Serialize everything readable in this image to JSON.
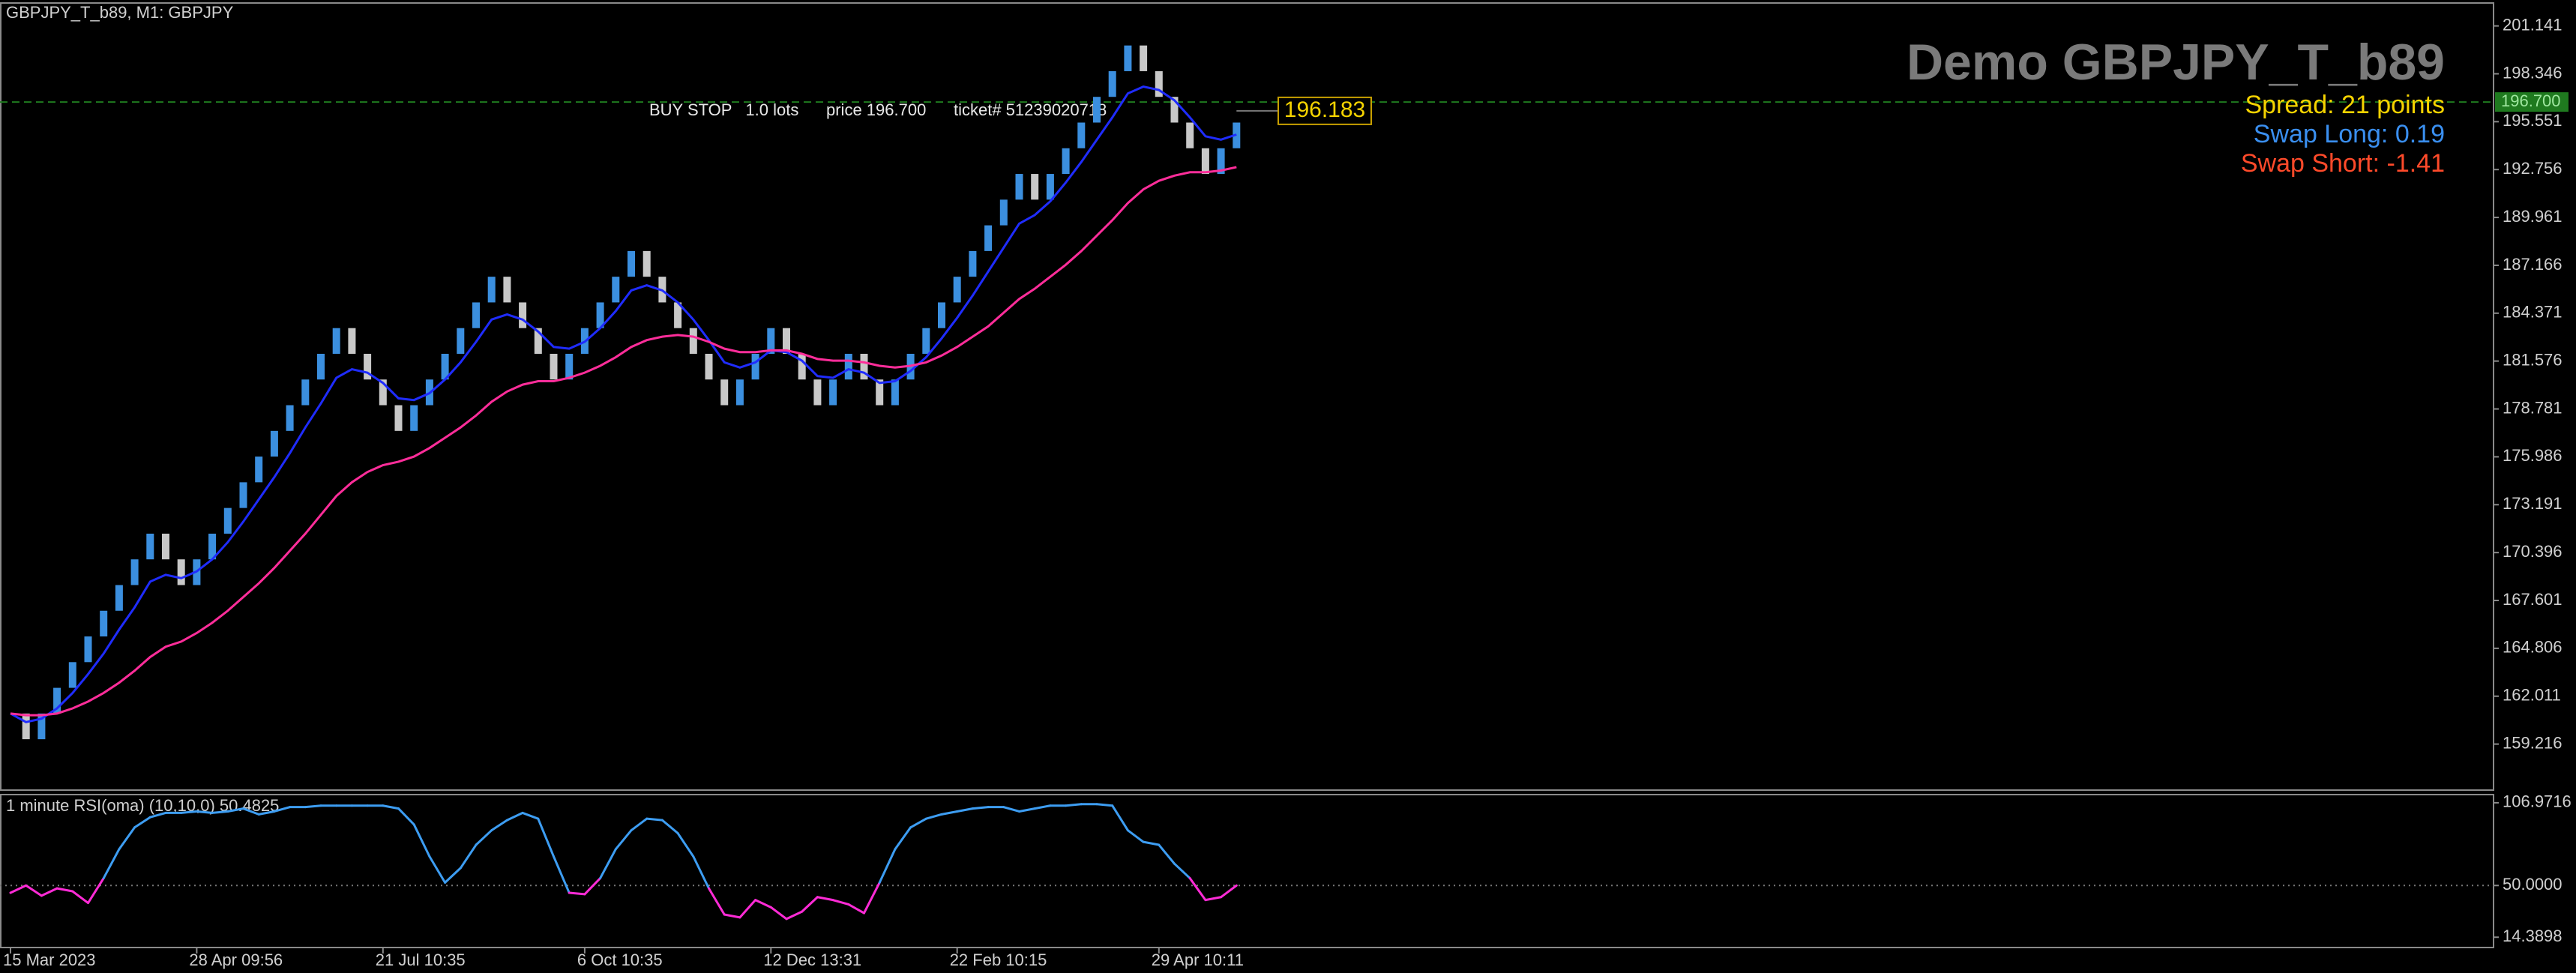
{
  "chart_data": [
    {
      "type": "renko",
      "title": "GBPJPY_T_b89, M1:  GBPJPY",
      "watermark": "Demo GBPJPY_T_b89",
      "info": [
        {
          "text": "Spread: 21 points",
          "color": "#f5d300"
        },
        {
          "text": "Swap Long: 0.19",
          "color": "#3a8ff0"
        },
        {
          "text": "Swap Short: -1.41",
          "color": "#ff4a2a"
        }
      ],
      "order": {
        "text": "BUY STOP   1.0 lots      price 196.700      ticket# 51239020718",
        "price": {
          "value": 196.7,
          "label": "196.700"
        },
        "color": "#1f7a1f"
      },
      "last_price": {
        "value": 196.183,
        "label": "196.183"
      },
      "categories": [
        "15 Mar 2023",
        null,
        null,
        null,
        null,
        null,
        null,
        null,
        null,
        null,
        null,
        null,
        "28 Apr 09:56",
        null,
        null,
        null,
        null,
        null,
        null,
        null,
        null,
        null,
        null,
        null,
        "21 Jul 10:35",
        null,
        null,
        null,
        null,
        null,
        null,
        null,
        null,
        null,
        null,
        null,
        null,
        "6 Oct 10:35",
        null,
        null,
        null,
        null,
        null,
        null,
        null,
        null,
        null,
        null,
        null,
        "12 Dec 13:31",
        null,
        null,
        null,
        null,
        null,
        null,
        null,
        null,
        null,
        null,
        null,
        "22 Feb 10:15",
        null,
        null,
        null,
        null,
        null,
        null,
        null,
        null,
        null,
        null,
        null,
        null,
        "29 Apr 10:11",
        null,
        null,
        null,
        null,
        null
      ],
      "values": [
        161.0,
        159.5,
        161,
        162.5,
        164,
        165.5,
        167,
        168.5,
        170,
        171.5,
        170,
        168.5,
        170,
        171.5,
        173,
        174.5,
        176,
        177.5,
        179,
        180.5,
        182,
        183.5,
        182,
        180.5,
        179,
        177.5,
        179,
        180.5,
        182,
        183.5,
        185,
        186.5,
        185,
        183.5,
        182,
        180.5,
        182,
        183.5,
        185,
        186.5,
        188,
        186.5,
        185,
        183.5,
        182,
        180.5,
        179,
        180.5,
        182,
        183.5,
        182,
        180.5,
        179,
        180.5,
        182,
        180.5,
        179,
        180.5,
        182,
        183.5,
        185,
        186.5,
        188,
        189.5,
        191,
        192.5,
        191,
        192.5,
        194,
        195.5,
        197,
        198.5,
        200,
        198.5,
        197,
        195.5,
        194,
        192.5,
        194,
        195.5
      ],
      "up_color": "#3b8fdf",
      "down_color": "#c8c8c8",
      "ma_lines": [
        {
          "color": "#1f2cff",
          "values": [
            161,
            160.5,
            160.7,
            161.3,
            162.2,
            163.3,
            164.5,
            165.9,
            167.2,
            168.7,
            169.1,
            168.9,
            169.3,
            170,
            171,
            172.2,
            173.5,
            174.8,
            176.2,
            177.7,
            179.1,
            180.6,
            181.1,
            180.9,
            180.3,
            179.4,
            179.3,
            179.7,
            180.5,
            181.5,
            182.7,
            184,
            184.3,
            184,
            183.3,
            182.4,
            182.3,
            182.7,
            183.5,
            184.5,
            185.7,
            186,
            185.7,
            185,
            184,
            182.8,
            181.5,
            181.2,
            181.5,
            182.2,
            182.1,
            181.6,
            180.7,
            180.6,
            181.1,
            180.9,
            180.3,
            180.4,
            181,
            181.8,
            182.9,
            184.1,
            185.4,
            186.8,
            188.2,
            189.6,
            190.1,
            190.9,
            192,
            193.2,
            194.5,
            195.8,
            197.2,
            197.6,
            197.4,
            196.8,
            195.8,
            194.7,
            194.5,
            194.8
          ]
        },
        {
          "color": "#ff2d9a",
          "values": [
            161,
            160.9,
            160.9,
            161,
            161.3,
            161.7,
            162.2,
            162.8,
            163.5,
            164.3,
            164.9,
            165.2,
            165.7,
            166.3,
            167,
            167.8,
            168.6,
            169.5,
            170.5,
            171.5,
            172.6,
            173.7,
            174.5,
            175.1,
            175.5,
            175.7,
            176,
            176.5,
            177.1,
            177.7,
            178.4,
            179.2,
            179.8,
            180.2,
            180.4,
            180.4,
            180.6,
            180.9,
            181.3,
            181.8,
            182.4,
            182.8,
            183,
            183.1,
            183,
            182.7,
            182.3,
            182.1,
            182.1,
            182.2,
            182.2,
            182,
            181.7,
            181.6,
            181.6,
            181.5,
            181.3,
            181.2,
            181.3,
            181.5,
            181.9,
            182.4,
            183,
            183.6,
            184.4,
            185.2,
            185.8,
            186.5,
            187.2,
            188,
            188.9,
            189.8,
            190.8,
            191.6,
            192.1,
            192.4,
            192.6,
            192.6,
            192.7,
            192.9
          ]
        }
      ],
      "ylim": [
        156.53,
        202.48
      ],
      "yticks": [
        201.141,
        198.346,
        195.551,
        192.756,
        189.961,
        187.166,
        184.371,
        181.576,
        178.781,
        175.986,
        173.191,
        170.396,
        167.601,
        164.806,
        162.011,
        159.216
      ]
    },
    {
      "type": "line",
      "title": "1 minute RSI(oma) (10,10,0) 50.4825",
      "values": [
        45,
        50,
        43,
        48,
        46,
        38,
        55,
        75,
        90,
        97,
        100,
        100,
        101,
        100,
        101,
        103,
        99,
        101,
        104,
        104,
        105,
        105,
        105,
        105,
        105,
        103,
        92,
        70,
        52,
        62,
        78,
        88,
        95,
        100,
        96,
        70,
        45,
        44,
        55,
        75,
        88,
        96,
        95,
        86,
        70,
        48,
        30,
        28,
        40,
        35,
        27,
        32,
        42,
        40,
        37,
        31,
        52,
        75,
        90,
        96,
        99,
        101,
        103,
        104,
        104,
        101,
        103,
        105,
        105,
        106,
        106,
        105,
        88,
        80,
        78,
        65,
        55,
        40,
        42,
        50
      ],
      "above_color": "#3d9df2",
      "below_color": "#ff2bd6",
      "levels": [
        50
      ],
      "ylim": [
        7.3,
        112.6
      ],
      "yticks": [
        106.9716,
        {
          "value": 50,
          "label": "50.0000"
        },
        14.3898
      ]
    }
  ]
}
